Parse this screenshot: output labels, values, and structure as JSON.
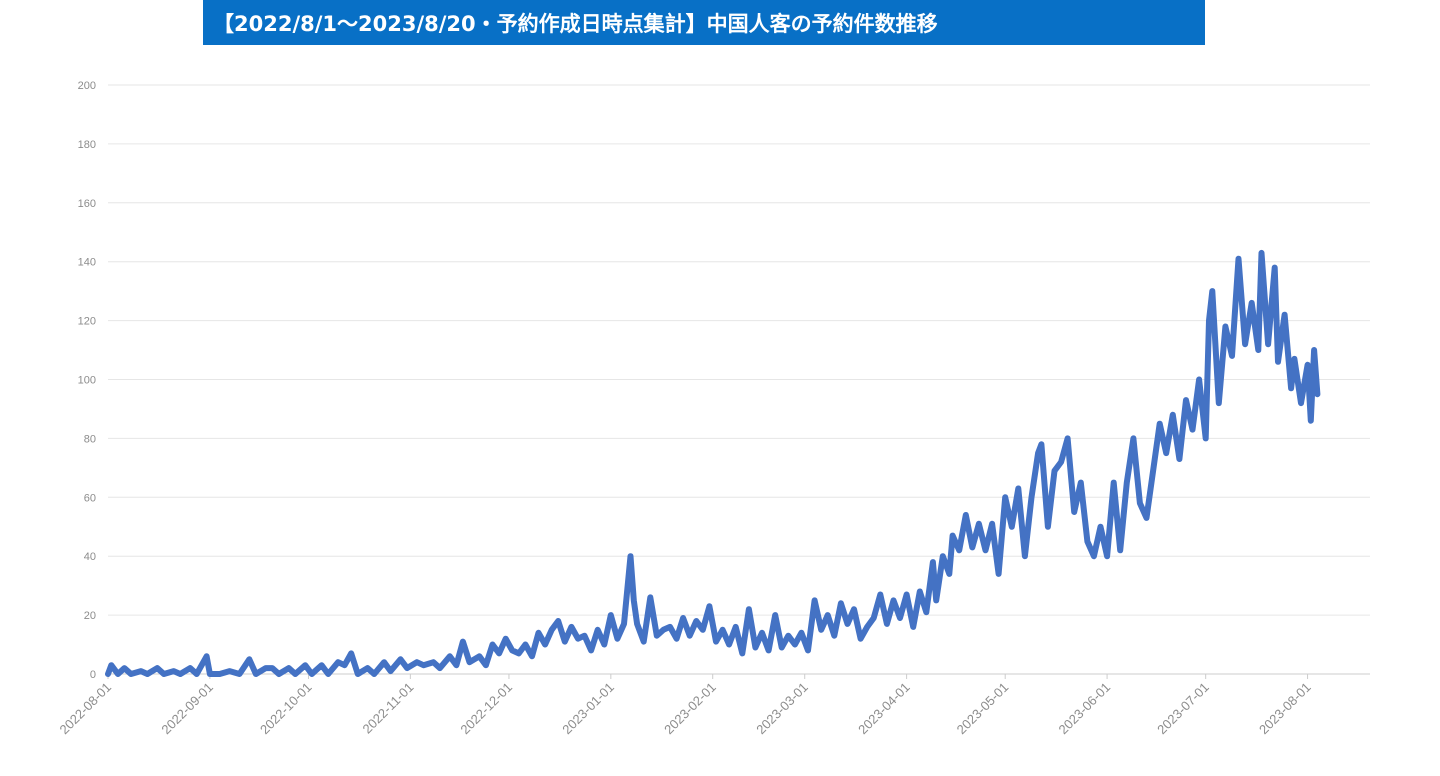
{
  "title": "【2022/8/1～2023/8/20・予約作成日時点集計】中国人客の予約件数推移",
  "colors": {
    "banner": "#0870c6",
    "line": "#4472c4",
    "grid": "#e6e6e6",
    "axis_text": "#8c8c8c"
  },
  "chart_data": {
    "type": "line",
    "title": "【2022/8/1～2023/8/20・予約作成日時点集計】中国人客の予約件数推移",
    "xlabel": "",
    "ylabel": "",
    "x_range": [
      "2022-08-01",
      "2023-08-20"
    ],
    "ylim": [
      0,
      200
    ],
    "yticks": [
      "0",
      "20",
      "40",
      "60",
      "80",
      "100",
      "120",
      "140",
      "160",
      "180",
      "200"
    ],
    "xticks": [
      "2022-08-01",
      "2022-09-01",
      "2022-10-01",
      "2022-11-01",
      "2022-12-01",
      "2023-01-01",
      "2023-02-01",
      "2023-03-01",
      "2023-04-01",
      "2023-05-01",
      "2023-06-01",
      "2023-07-01",
      "2023-08-01"
    ],
    "grid": true,
    "legend": "none",
    "series": [
      {
        "points": [
          [
            "2022-08-01",
            0
          ],
          [
            "2022-08-02",
            3
          ],
          [
            "2022-08-04",
            0
          ],
          [
            "2022-08-06",
            2
          ],
          [
            "2022-08-08",
            0
          ],
          [
            "2022-08-11",
            1
          ],
          [
            "2022-08-13",
            0
          ],
          [
            "2022-08-16",
            2
          ],
          [
            "2022-08-18",
            0
          ],
          [
            "2022-08-21",
            1
          ],
          [
            "2022-08-23",
            0
          ],
          [
            "2022-08-26",
            2
          ],
          [
            "2022-08-28",
            0
          ],
          [
            "2022-08-31",
            6
          ],
          [
            "2022-09-01",
            0
          ],
          [
            "2022-09-04",
            0
          ],
          [
            "2022-09-07",
            1
          ],
          [
            "2022-09-10",
            0
          ],
          [
            "2022-09-13",
            5
          ],
          [
            "2022-09-15",
            0
          ],
          [
            "2022-09-18",
            2
          ],
          [
            "2022-09-20",
            2
          ],
          [
            "2022-09-22",
            0
          ],
          [
            "2022-09-25",
            2
          ],
          [
            "2022-09-27",
            0
          ],
          [
            "2022-09-30",
            3
          ],
          [
            "2022-10-02",
            0
          ],
          [
            "2022-10-05",
            3
          ],
          [
            "2022-10-07",
            0
          ],
          [
            "2022-10-10",
            4
          ],
          [
            "2022-10-12",
            3
          ],
          [
            "2022-10-14",
            7
          ],
          [
            "2022-10-16",
            0
          ],
          [
            "2022-10-19",
            2
          ],
          [
            "2022-10-21",
            0
          ],
          [
            "2022-10-24",
            4
          ],
          [
            "2022-10-26",
            1
          ],
          [
            "2022-10-29",
            5
          ],
          [
            "2022-10-31",
            2
          ],
          [
            "2022-11-03",
            4
          ],
          [
            "2022-11-05",
            3
          ],
          [
            "2022-11-08",
            4
          ],
          [
            "2022-11-10",
            2
          ],
          [
            "2022-11-13",
            6
          ],
          [
            "2022-11-15",
            3
          ],
          [
            "2022-11-17",
            11
          ],
          [
            "2022-11-19",
            4
          ],
          [
            "2022-11-22",
            6
          ],
          [
            "2022-11-24",
            3
          ],
          [
            "2022-11-26",
            10
          ],
          [
            "2022-11-28",
            7
          ],
          [
            "2022-11-30",
            12
          ],
          [
            "2022-12-02",
            8
          ],
          [
            "2022-12-04",
            7
          ],
          [
            "2022-12-06",
            10
          ],
          [
            "2022-12-08",
            6
          ],
          [
            "2022-12-10",
            14
          ],
          [
            "2022-12-12",
            10
          ],
          [
            "2022-12-14",
            15
          ],
          [
            "2022-12-16",
            18
          ],
          [
            "2022-12-18",
            11
          ],
          [
            "2022-12-20",
            16
          ],
          [
            "2022-12-22",
            12
          ],
          [
            "2022-12-24",
            13
          ],
          [
            "2022-12-26",
            8
          ],
          [
            "2022-12-28",
            15
          ],
          [
            "2022-12-30",
            10
          ],
          [
            "2023-01-01",
            20
          ],
          [
            "2023-01-03",
            12
          ],
          [
            "2023-01-05",
            17
          ],
          [
            "2023-01-07",
            40
          ],
          [
            "2023-01-08",
            25
          ],
          [
            "2023-01-09",
            17
          ],
          [
            "2023-01-11",
            11
          ],
          [
            "2023-01-13",
            26
          ],
          [
            "2023-01-15",
            13
          ],
          [
            "2023-01-17",
            15
          ],
          [
            "2023-01-19",
            16
          ],
          [
            "2023-01-21",
            12
          ],
          [
            "2023-01-23",
            19
          ],
          [
            "2023-01-25",
            13
          ],
          [
            "2023-01-27",
            18
          ],
          [
            "2023-01-29",
            15
          ],
          [
            "2023-01-31",
            23
          ],
          [
            "2023-02-02",
            11
          ],
          [
            "2023-02-04",
            15
          ],
          [
            "2023-02-06",
            10
          ],
          [
            "2023-02-08",
            16
          ],
          [
            "2023-02-10",
            7
          ],
          [
            "2023-02-12",
            22
          ],
          [
            "2023-02-14",
            9
          ],
          [
            "2023-02-16",
            14
          ],
          [
            "2023-02-18",
            8
          ],
          [
            "2023-02-20",
            20
          ],
          [
            "2023-02-22",
            9
          ],
          [
            "2023-02-24",
            13
          ],
          [
            "2023-02-26",
            10
          ],
          [
            "2023-02-28",
            14
          ],
          [
            "2023-03-02",
            8
          ],
          [
            "2023-03-04",
            25
          ],
          [
            "2023-03-06",
            15
          ],
          [
            "2023-03-08",
            20
          ],
          [
            "2023-03-10",
            13
          ],
          [
            "2023-03-12",
            24
          ],
          [
            "2023-03-14",
            17
          ],
          [
            "2023-03-16",
            22
          ],
          [
            "2023-03-18",
            12
          ],
          [
            "2023-03-20",
            16
          ],
          [
            "2023-03-22",
            19
          ],
          [
            "2023-03-24",
            27
          ],
          [
            "2023-03-26",
            17
          ],
          [
            "2023-03-28",
            25
          ],
          [
            "2023-03-30",
            19
          ],
          [
            "2023-04-01",
            27
          ],
          [
            "2023-04-03",
            16
          ],
          [
            "2023-04-05",
            28
          ],
          [
            "2023-04-07",
            21
          ],
          [
            "2023-04-09",
            38
          ],
          [
            "2023-04-10",
            25
          ],
          [
            "2023-04-12",
            40
          ],
          [
            "2023-04-14",
            34
          ],
          [
            "2023-04-15",
            47
          ],
          [
            "2023-04-17",
            42
          ],
          [
            "2023-04-19",
            54
          ],
          [
            "2023-04-21",
            43
          ],
          [
            "2023-04-23",
            51
          ],
          [
            "2023-04-25",
            42
          ],
          [
            "2023-04-27",
            51
          ],
          [
            "2023-04-29",
            34
          ],
          [
            "2023-05-01",
            60
          ],
          [
            "2023-05-03",
            50
          ],
          [
            "2023-05-05",
            63
          ],
          [
            "2023-05-07",
            40
          ],
          [
            "2023-05-09",
            60
          ],
          [
            "2023-05-11",
            75
          ],
          [
            "2023-05-12",
            78
          ],
          [
            "2023-05-14",
            50
          ],
          [
            "2023-05-16",
            69
          ],
          [
            "2023-05-18",
            72
          ],
          [
            "2023-05-20",
            80
          ],
          [
            "2023-05-22",
            55
          ],
          [
            "2023-05-24",
            65
          ],
          [
            "2023-05-26",
            45
          ],
          [
            "2023-05-28",
            40
          ],
          [
            "2023-05-30",
            50
          ],
          [
            "2023-06-01",
            40
          ],
          [
            "2023-06-03",
            65
          ],
          [
            "2023-06-05",
            42
          ],
          [
            "2023-06-07",
            65
          ],
          [
            "2023-06-09",
            80
          ],
          [
            "2023-06-11",
            58
          ],
          [
            "2023-06-13",
            53
          ],
          [
            "2023-06-15",
            69
          ],
          [
            "2023-06-17",
            85
          ],
          [
            "2023-06-19",
            75
          ],
          [
            "2023-06-21",
            88
          ],
          [
            "2023-06-23",
            73
          ],
          [
            "2023-06-25",
            93
          ],
          [
            "2023-06-27",
            83
          ],
          [
            "2023-06-29",
            100
          ],
          [
            "2023-07-01",
            80
          ],
          [
            "2023-07-02",
            120
          ],
          [
            "2023-07-03",
            130
          ],
          [
            "2023-07-05",
            92
          ],
          [
            "2023-07-07",
            118
          ],
          [
            "2023-07-09",
            108
          ],
          [
            "2023-07-11",
            141
          ],
          [
            "2023-07-13",
            112
          ],
          [
            "2023-07-15",
            126
          ],
          [
            "2023-07-17",
            110
          ],
          [
            "2023-07-18",
            143
          ],
          [
            "2023-07-20",
            112
          ],
          [
            "2023-07-22",
            138
          ],
          [
            "2023-07-23",
            106
          ],
          [
            "2023-07-25",
            122
          ],
          [
            "2023-07-27",
            97
          ],
          [
            "2023-07-28",
            107
          ],
          [
            "2023-07-30",
            92
          ],
          [
            "2023-08-01",
            105
          ],
          [
            "2023-08-02",
            86
          ],
          [
            "2023-08-03",
            110
          ],
          [
            "2023-08-04",
            95
          ]
        ]
      }
    ]
  }
}
